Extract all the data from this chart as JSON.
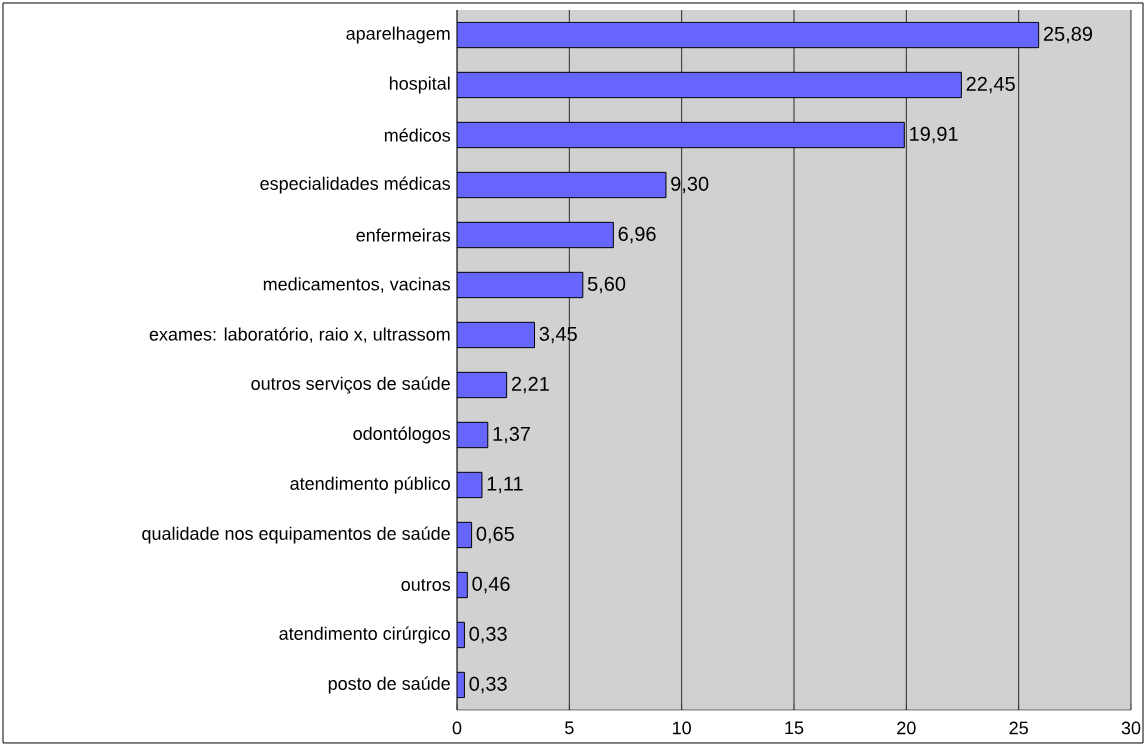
{
  "chart_data": {
    "type": "bar",
    "orientation": "horizontal",
    "categories": [
      "aparelhagem",
      "hospital",
      "médicos",
      "especialidades médicas",
      "enfermeiras",
      "medicamentos, vacinas",
      "exames: laboratório, raio x, ultrassom",
      "outros serviços de saúde",
      "odontólogos",
      "atendimento público",
      "qualidade nos equipamentos de saúde",
      "outros",
      "atendimento cirúrgico",
      "posto de saúde"
    ],
    "values": [
      25.89,
      22.45,
      19.91,
      9.3,
      6.96,
      5.6,
      3.45,
      2.21,
      1.37,
      1.11,
      0.65,
      0.46,
      0.33,
      0.33
    ],
    "value_labels": [
      "25,89",
      "22,45",
      "19,91",
      "9,30",
      "6,96",
      "5,60",
      "3,45",
      "2,21",
      "1,37",
      "1,11",
      "0,65",
      "0,46",
      "0,33",
      "0,33"
    ],
    "color": "#6666ff",
    "xlim": [
      0,
      30
    ],
    "xticks": [
      0,
      5,
      10,
      15,
      20,
      25,
      30
    ],
    "grid": "x"
  }
}
